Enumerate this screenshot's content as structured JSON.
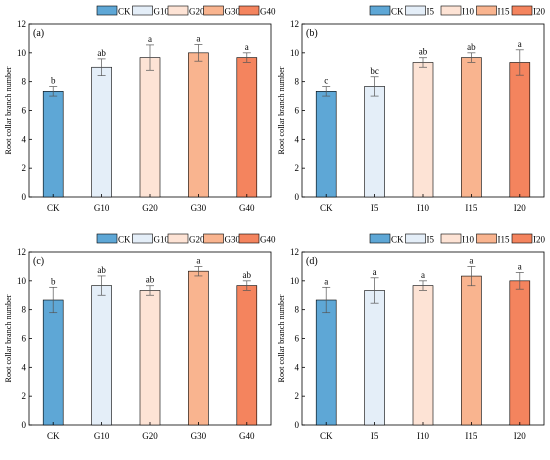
{
  "figure": {
    "colors": [
      "#5ea7d6",
      "#e4eef8",
      "#fde3d5",
      "#f9b48f",
      "#f4845e"
    ],
    "panels": [
      {
        "panel_label": "(a)",
        "legend_labels": [
          "CK",
          "G10",
          "G20",
          "G30",
          "G40"
        ],
        "chart_data": {
          "type": "bar",
          "categories": [
            "CK",
            "G10",
            "G20",
            "G30",
            "G40"
          ],
          "values": [
            7.33,
            9.0,
            9.67,
            10.0,
            9.67
          ],
          "errors": [
            0.33,
            0.58,
            0.88,
            0.58,
            0.33
          ],
          "significance": [
            "b",
            "ab",
            "a",
            "a",
            "a"
          ],
          "ylabel": "Root collar branch number",
          "ylim": [
            0,
            12
          ],
          "yticks": [
            0,
            2,
            4,
            6,
            8,
            10,
            12
          ],
          "legend_position": "top"
        }
      },
      {
        "panel_label": "(b)",
        "legend_labels": [
          "CK",
          "I5",
          "I10",
          "I15",
          "I20"
        ],
        "chart_data": {
          "type": "bar",
          "categories": [
            "CK",
            "I5",
            "I10",
            "I15",
            "I20"
          ],
          "values": [
            7.33,
            7.67,
            9.33,
            9.67,
            9.33
          ],
          "errors": [
            0.33,
            0.67,
            0.33,
            0.33,
            0.88
          ],
          "significance": [
            "c",
            "bc",
            "ab",
            "ab",
            "a"
          ],
          "ylabel": "Root collar branch number",
          "ylim": [
            0,
            12
          ],
          "yticks": [
            0,
            2,
            4,
            6,
            8,
            10,
            12
          ],
          "legend_position": "top"
        }
      },
      {
        "panel_label": "(c)",
        "legend_labels": [
          "CK",
          "G10",
          "G20",
          "G30",
          "G40"
        ],
        "chart_data": {
          "type": "bar",
          "categories": [
            "CK",
            "G10",
            "G20",
            "G30",
            "G40"
          ],
          "values": [
            8.67,
            9.67,
            9.33,
            10.67,
            9.67
          ],
          "errors": [
            0.88,
            0.67,
            0.33,
            0.33,
            0.33
          ],
          "significance": [
            "b",
            "ab",
            "ab",
            "a",
            "ab"
          ],
          "ylabel": "Root collar branch number",
          "ylim": [
            0,
            12
          ],
          "yticks": [
            0,
            2,
            4,
            6,
            8,
            10,
            12
          ],
          "legend_position": "top"
        }
      },
      {
        "panel_label": "(d)",
        "legend_labels": [
          "CK",
          "I5",
          "I10",
          "I15",
          "I20"
        ],
        "chart_data": {
          "type": "bar",
          "categories": [
            "CK",
            "I5",
            "I10",
            "I15",
            "I20"
          ],
          "values": [
            8.67,
            9.33,
            9.67,
            10.33,
            10.0
          ],
          "errors": [
            0.88,
            0.88,
            0.33,
            0.67,
            0.58
          ],
          "significance": [
            "a",
            "a",
            "a",
            "a",
            "a"
          ],
          "ylabel": "Root collar branch number",
          "ylim": [
            0,
            12
          ],
          "yticks": [
            0,
            2,
            4,
            6,
            8,
            10,
            12
          ],
          "legend_position": "top"
        }
      }
    ]
  }
}
